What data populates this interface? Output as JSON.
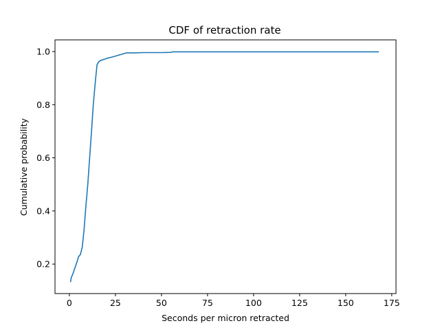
{
  "chart_data": {
    "type": "line",
    "title": "CDF of retraction rate",
    "xlabel": "Seconds per micron retracted",
    "ylabel": "Cumulative probability",
    "xlim": [
      -7.8,
      177.3
    ],
    "ylim": [
      0.089,
      1.044
    ],
    "x_ticks": [
      "0",
      "25",
      "50",
      "75",
      "100",
      "125",
      "150",
      "175"
    ],
    "y_ticks": [
      "0.2",
      "0.4",
      "0.6",
      "0.8",
      "1.0"
    ],
    "grid": false,
    "legend": "none",
    "series": [
      {
        "color": "#1f77b4",
        "points": [
          [
            0.6,
            0.132
          ],
          [
            1.0,
            0.148
          ],
          [
            2.0,
            0.165
          ],
          [
            3.0,
            0.185
          ],
          [
            4.0,
            0.205
          ],
          [
            5.0,
            0.228
          ],
          [
            6.0,
            0.236
          ],
          [
            7.0,
            0.265
          ],
          [
            8.0,
            0.33
          ],
          [
            9.0,
            0.42
          ],
          [
            10.0,
            0.5
          ],
          [
            11.0,
            0.6
          ],
          [
            12.0,
            0.7
          ],
          [
            13.0,
            0.8
          ],
          [
            14.0,
            0.88
          ],
          [
            15.0,
            0.95
          ],
          [
            16.0,
            0.962
          ],
          [
            17.0,
            0.967
          ],
          [
            19.0,
            0.971
          ],
          [
            21.0,
            0.976
          ],
          [
            23.0,
            0.979
          ],
          [
            25.0,
            0.983
          ],
          [
            27.0,
            0.987
          ],
          [
            29.0,
            0.991
          ],
          [
            31.0,
            0.995
          ],
          [
            35.0,
            0.995
          ],
          [
            40.0,
            0.996
          ],
          [
            50.0,
            0.996
          ],
          [
            55.0,
            0.997
          ],
          [
            56.0,
            0.999
          ],
          [
            80.0,
            0.999
          ],
          [
            120.0,
            0.999
          ],
          [
            168.0,
            0.999
          ]
        ]
      }
    ]
  }
}
